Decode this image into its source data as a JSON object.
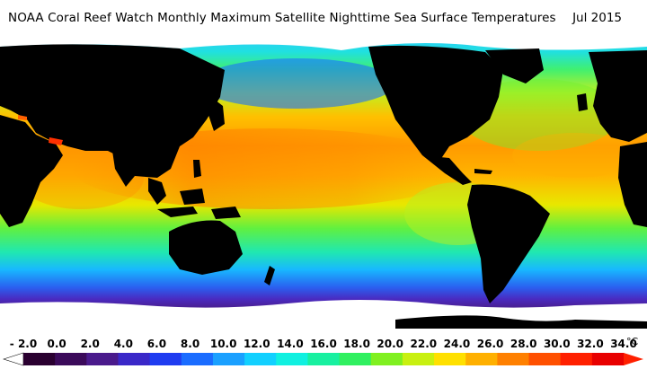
{
  "title": "NOAA Coral Reef Watch Monthly Maximum Satellite Nighttime Sea Surface Temperatures",
  "date_label": "Jul 2015",
  "legend": {
    "ticks": [
      "- 2.0",
      "0.0",
      "2.0",
      "4.0",
      "6.0",
      "8.0",
      "10.0",
      "12.0",
      "14.0",
      "16.0",
      "18.0",
      "20.0",
      "22.0",
      "24.0",
      "26.0",
      "28.0",
      "30.0",
      "32.0",
      "34.0"
    ],
    "unit": "°C",
    "min": -2.0,
    "max": 34.0,
    "colors": [
      "#2a0030",
      "#3b0a5a",
      "#4a1a8c",
      "#3a28c8",
      "#1f3cf0",
      "#1a6cff",
      "#1aa0ff",
      "#12d0ff",
      "#10f0e0",
      "#18f0a0",
      "#30f060",
      "#80f020",
      "#c8f010",
      "#ffe000",
      "#ffb000",
      "#ff8000",
      "#ff5000",
      "#ff2000",
      "#e80000"
    ]
  },
  "map": {
    "land_color": "#000000",
    "ice_color": "#ffffff",
    "palette": {
      "polar_south": "#5a2090",
      "sub_antarctic": "#3a40e0",
      "cool_temperate": "#18b0f8",
      "mild": "#20e0d0",
      "warm": "#50f060",
      "subtropical": "#d8f020",
      "tropical": "#ffc000",
      "hot": "#ff9000",
      "hottest": "#ff5010"
    }
  }
}
